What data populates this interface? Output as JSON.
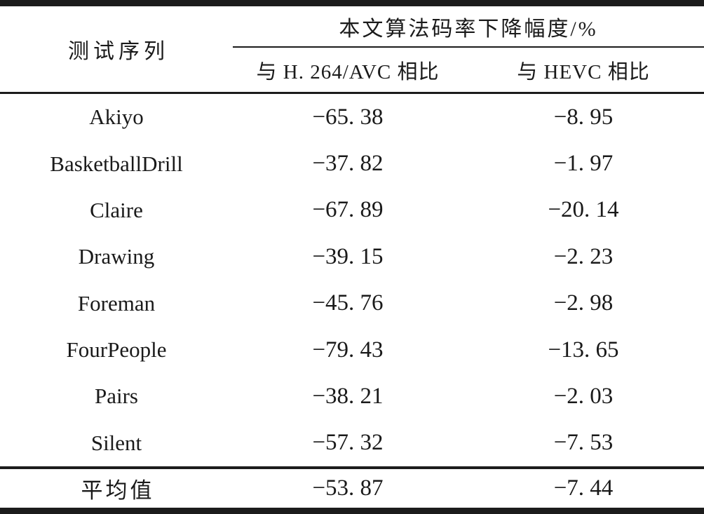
{
  "colors": {
    "text": "#1a1a1a",
    "rule": "#1c1c1c",
    "background": "#ffffff"
  },
  "table": {
    "column1_header": "测试序列",
    "group_header": "本文算法码率下降幅度/%",
    "subheader_avc": "与 H. 264/AVC 相比",
    "subheader_hevc": "与 HEVC 相比",
    "rows": [
      {
        "name": "Akiyo",
        "vs_avc": "−65. 38",
        "vs_hevc": "−8. 95"
      },
      {
        "name": "BasketballDrill",
        "vs_avc": "−37. 82",
        "vs_hevc": "−1. 97"
      },
      {
        "name": "Claire",
        "vs_avc": "−67. 89",
        "vs_hevc": "−20. 14"
      },
      {
        "name": "Drawing",
        "vs_avc": "−39. 15",
        "vs_hevc": "−2. 23"
      },
      {
        "name": "Foreman",
        "vs_avc": "−45. 76",
        "vs_hevc": "−2. 98"
      },
      {
        "name": "FourPeople",
        "vs_avc": "−79. 43",
        "vs_hevc": "−13. 65"
      },
      {
        "name": "Pairs",
        "vs_avc": "−38. 21",
        "vs_hevc": "−2. 03"
      },
      {
        "name": "Silent",
        "vs_avc": "−57. 32",
        "vs_hevc": "−7. 53"
      }
    ],
    "summary_row": {
      "name": "平均值",
      "vs_avc": "−53. 87",
      "vs_hevc": "−7. 44"
    }
  },
  "chart_data": {
    "type": "table",
    "title": "本文算法码率下降幅度/%",
    "columns": [
      "测试序列",
      "与 H.264/AVC 相比",
      "与 HEVC 相比"
    ],
    "rows": [
      [
        "Akiyo",
        -65.38,
        -8.95
      ],
      [
        "BasketballDrill",
        -37.82,
        -1.97
      ],
      [
        "Claire",
        -67.89,
        -20.14
      ],
      [
        "Drawing",
        -39.15,
        -2.23
      ],
      [
        "Foreman",
        -45.76,
        -2.98
      ],
      [
        "FourPeople",
        -79.43,
        -13.65
      ],
      [
        "Pairs",
        -38.21,
        -2.03
      ],
      [
        "Silent",
        -57.32,
        -7.53
      ],
      [
        "平均值",
        -53.87,
        -7.44
      ]
    ]
  }
}
